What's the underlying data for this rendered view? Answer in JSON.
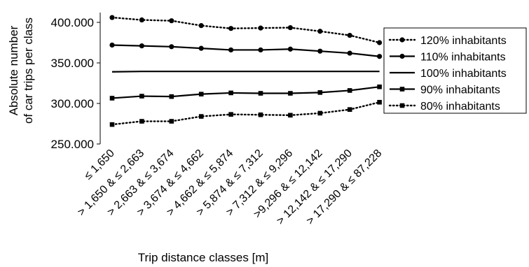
{
  "chart_data": {
    "type": "line",
    "xlabel": "Trip distance classes [m]",
    "ylabel_lines": [
      "Absolute number",
      "of car trips per class"
    ],
    "ylim": [
      250000,
      400000
    ],
    "y_ticks": [
      250000,
      300000,
      350000,
      400000
    ],
    "y_tick_labels": [
      "250.000",
      "300.000",
      "350.000",
      "400.000"
    ],
    "grid": false,
    "legend_position": "right",
    "categories": [
      "≤ 1,650",
      "> 1,650 & ≤ 2,663",
      "> 2,663 & ≤ 3,674",
      "> 3,674 & ≤ 4,662",
      "> 4,662 & ≤ 5,874",
      "> 5,874 & ≤ 7,312",
      "> 7,312 & ≤ 9,296",
      ">9,296 & ≤ 12,142",
      "> 12,142 & ≤ 17,290",
      "> 17,290 & ≤ 87,228"
    ],
    "series": [
      {
        "name": "120% inhabitants",
        "line": "dotted",
        "marker": "circle",
        "values": [
          406000,
          403000,
          402000,
          396000,
          392500,
          393000,
          393500,
          389000,
          384000,
          375000
        ]
      },
      {
        "name": "110% inhabitants",
        "line": "solid",
        "marker": "circle",
        "values": [
          372000,
          371000,
          370000,
          368000,
          366000,
          366000,
          367000,
          364500,
          362000,
          358000
        ]
      },
      {
        "name": "100% inhabitants",
        "line": "solid",
        "marker": "none",
        "values": [
          339000,
          339500,
          339500,
          339500,
          339500,
          339500,
          339500,
          339500,
          339500,
          339500
        ]
      },
      {
        "name": "90% inhabitants",
        "line": "solid",
        "marker": "square",
        "values": [
          306500,
          309000,
          308500,
          311500,
          313000,
          312500,
          312500,
          313500,
          316000,
          320500
        ]
      },
      {
        "name": "80% inhabitants",
        "line": "dotted",
        "marker": "square",
        "values": [
          274000,
          278000,
          278000,
          284000,
          286500,
          286000,
          285500,
          288000,
          292500,
          301500
        ]
      }
    ]
  }
}
